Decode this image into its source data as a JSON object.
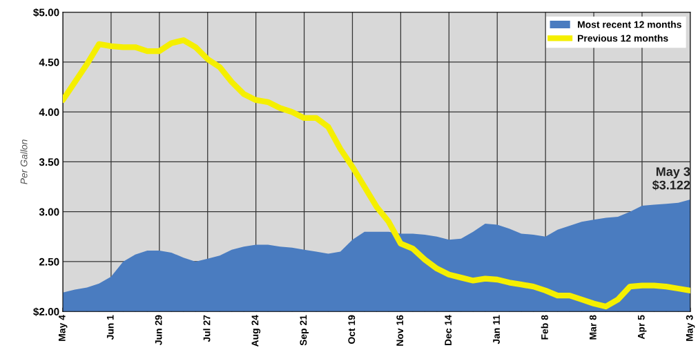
{
  "chart_data": {
    "type": "area",
    "ylabel": "Per Gallon",
    "categories": [
      "May 4",
      null,
      null,
      null,
      "Jun 1",
      null,
      null,
      null,
      "Jun 29",
      null,
      null,
      null,
      "Jul 27",
      null,
      null,
      null,
      "Aug 24",
      null,
      null,
      null,
      "Sep 21",
      null,
      null,
      null,
      "Oct 19",
      null,
      null,
      null,
      "Nov 16",
      null,
      null,
      null,
      "Dec 14",
      null,
      null,
      null,
      "Jan 11",
      null,
      null,
      null,
      "Feb 8",
      null,
      null,
      null,
      "Mar 8",
      null,
      null,
      null,
      "Apr 5",
      null,
      null,
      null,
      "May 3"
    ],
    "series": [
      {
        "name": "Most recent 12 months",
        "color": "#4a7cc0",
        "values": [
          2.19,
          2.22,
          2.24,
          2.28,
          2.35,
          2.5,
          2.57,
          2.61,
          2.61,
          2.59,
          2.54,
          2.5,
          2.53,
          2.56,
          2.62,
          2.65,
          2.67,
          2.67,
          2.65,
          2.64,
          2.62,
          2.6,
          2.58,
          2.6,
          2.72,
          2.8,
          2.8,
          2.8,
          2.78,
          2.78,
          2.77,
          2.75,
          2.72,
          2.73,
          2.8,
          2.88,
          2.87,
          2.83,
          2.78,
          2.77,
          2.75,
          2.82,
          2.86,
          2.9,
          2.92,
          2.94,
          2.95,
          3.0,
          3.06,
          3.07,
          3.08,
          3.09,
          3.122
        ]
      },
      {
        "name": "Previous 12 months",
        "type": "line",
        "color": "#f5ef00",
        "values": [
          4.12,
          4.3,
          4.48,
          4.68,
          4.66,
          4.65,
          4.65,
          4.61,
          4.61,
          4.69,
          4.72,
          4.65,
          4.53,
          4.45,
          4.3,
          4.18,
          4.12,
          4.1,
          4.04,
          4.0,
          3.94,
          3.94,
          3.85,
          3.63,
          3.45,
          3.25,
          3.05,
          2.9,
          2.68,
          2.63,
          2.52,
          2.43,
          2.37,
          2.34,
          2.31,
          2.33,
          2.32,
          2.29,
          2.27,
          2.25,
          2.21,
          2.16,
          2.16,
          2.12,
          2.08,
          2.05,
          2.12,
          2.25,
          2.26,
          2.26,
          2.25,
          2.23,
          2.21
        ]
      }
    ],
    "ylim": [
      2.0,
      5.0
    ],
    "yticks": [
      {
        "value": 2.0,
        "label": "$2.00"
      },
      {
        "value": 2.5,
        "label": "2.50"
      },
      {
        "value": 3.0,
        "label": "3.00"
      },
      {
        "value": 3.5,
        "label": "3.50"
      },
      {
        "value": 4.0,
        "label": "4.00"
      },
      {
        "value": 4.5,
        "label": "4.50"
      },
      {
        "value": 5.0,
        "label": "$5.00"
      }
    ],
    "annotations": [
      {
        "text": "May 3\n$3.122",
        "x": "May 3",
        "y": 3.122
      }
    ],
    "grid": true,
    "legend": "top right",
    "line_style": "solid",
    "marker": "none"
  }
}
